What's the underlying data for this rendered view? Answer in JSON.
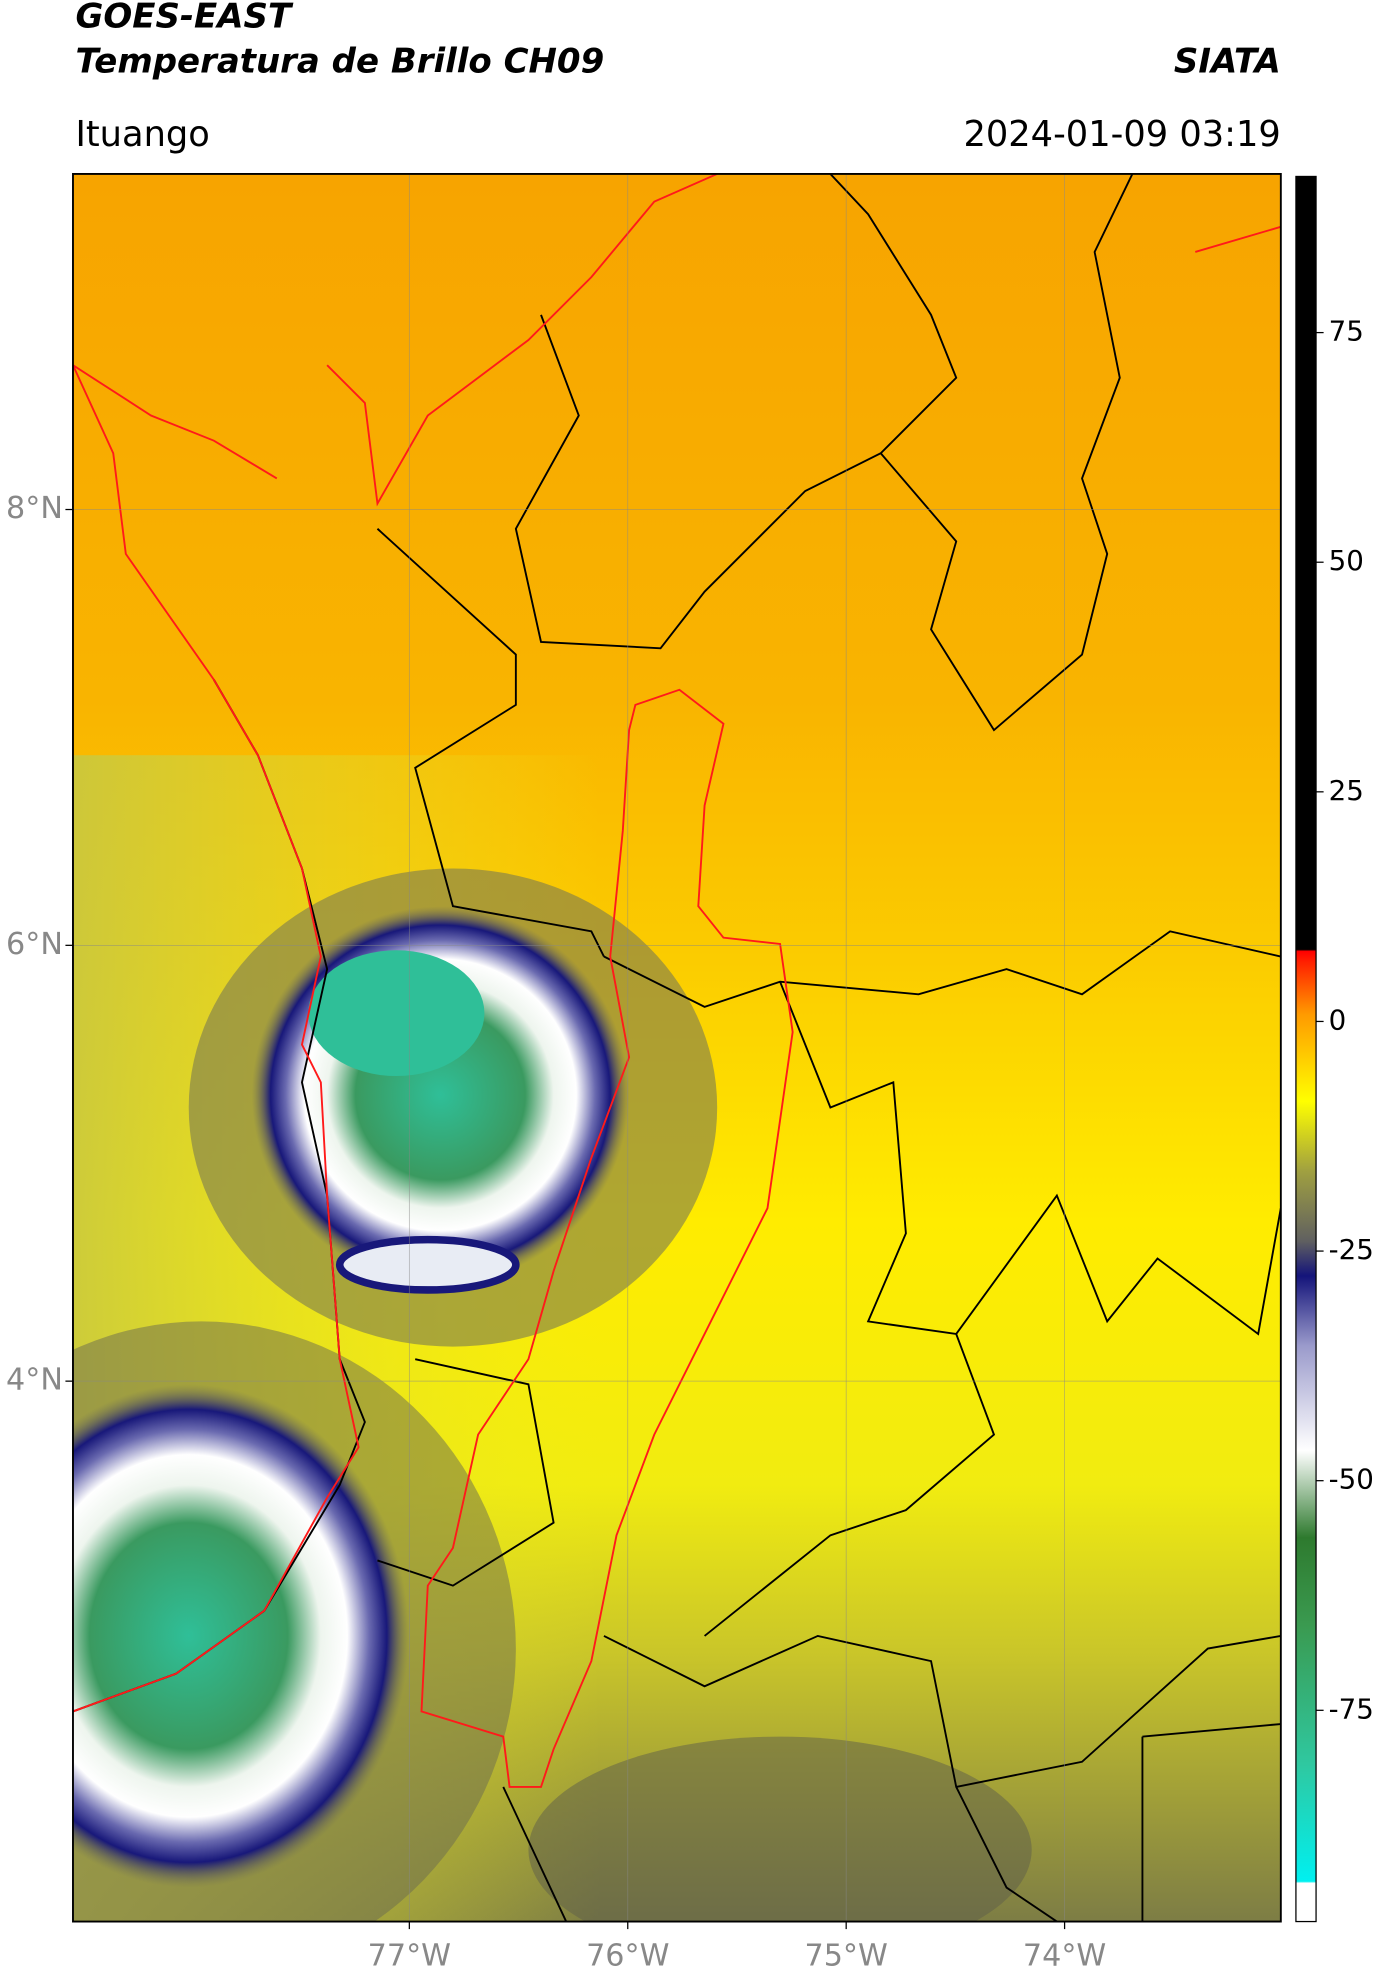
{
  "header": {
    "satellite": "GOES-EAST",
    "product": "Temperatura de Brillo CH09",
    "source": "SIATA",
    "region": "Ituango",
    "datetime": "2024-01-09 03:19"
  },
  "map": {
    "xlim": [
      -78.54,
      -73.01
    ],
    "ylim": [
      1.52,
      9.54
    ],
    "xticks": [
      {
        "value": -77,
        "label": "77°W"
      },
      {
        "value": -76,
        "label": "76°W"
      },
      {
        "value": -75,
        "label": "75°W"
      },
      {
        "value": -74,
        "label": "74°W"
      }
    ],
    "yticks": [
      {
        "value": 8,
        "label": "8°N"
      },
      {
        "value": 6,
        "label": "6°N"
      },
      {
        "value": 4,
        "label": "4°N"
      }
    ]
  },
  "colorbar": {
    "lim": [
      -98,
      92
    ],
    "ticks": [
      75,
      50,
      25,
      0,
      -25,
      -50,
      -75
    ]
  }
}
